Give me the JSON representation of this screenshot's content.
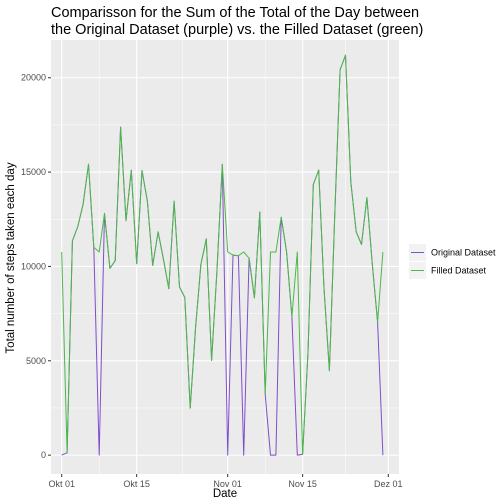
{
  "chart_data": {
    "type": "line",
    "title_lines": [
      "Comparisson for the Sum of the Total of the Day between",
      "the Original Dataset (purple) vs. the Filled Dataset (green)"
    ],
    "xlabel": "Date",
    "ylabel": "Total number of steps taken each day",
    "x_ticks": [
      {
        "date": "2012-10-01",
        "label": "Okt 01"
      },
      {
        "date": "2012-10-15",
        "label": "Okt 15"
      },
      {
        "date": "2012-11-01",
        "label": "Nov 01"
      },
      {
        "date": "2012-11-15",
        "label": "Nov 15"
      },
      {
        "date": "2012-12-01",
        "label": "Dez 01"
      }
    ],
    "y_ticks": [
      0,
      5000,
      10000,
      15000,
      20000
    ],
    "xlim": [
      "2012-09-29",
      "2012-12-03"
    ],
    "ylim": [
      -1000,
      22000
    ],
    "grid": true,
    "legend": {
      "position": "right",
      "entries": [
        {
          "name": "Original Dataset",
          "color": "#7f4fc9"
        },
        {
          "name": "Filled Dataset",
          "color": "#4cb848"
        }
      ]
    },
    "background_color": "#ebebeb",
    "gridline_color": "#ffffff",
    "x": [
      "2012-10-01",
      "2012-10-02",
      "2012-10-03",
      "2012-10-04",
      "2012-10-05",
      "2012-10-06",
      "2012-10-07",
      "2012-10-08",
      "2012-10-09",
      "2012-10-10",
      "2012-10-11",
      "2012-10-12",
      "2012-10-13",
      "2012-10-14",
      "2012-10-15",
      "2012-10-16",
      "2012-10-17",
      "2012-10-18",
      "2012-10-19",
      "2012-10-20",
      "2012-10-21",
      "2012-10-22",
      "2012-10-23",
      "2012-10-24",
      "2012-10-25",
      "2012-10-26",
      "2012-10-27",
      "2012-10-28",
      "2012-10-29",
      "2012-10-30",
      "2012-10-31",
      "2012-11-01",
      "2012-11-02",
      "2012-11-03",
      "2012-11-04",
      "2012-11-05",
      "2012-11-06",
      "2012-11-07",
      "2012-11-08",
      "2012-11-09",
      "2012-11-10",
      "2012-11-11",
      "2012-11-12",
      "2012-11-13",
      "2012-11-14",
      "2012-11-15",
      "2012-11-16",
      "2012-11-17",
      "2012-11-18",
      "2012-11-19",
      "2012-11-20",
      "2012-11-21",
      "2012-11-22",
      "2012-11-23",
      "2012-11-24",
      "2012-11-25",
      "2012-11-26",
      "2012-11-27",
      "2012-11-28",
      "2012-11-29",
      "2012-11-30"
    ],
    "series": [
      {
        "name": "Original Dataset",
        "color": "#7f4fc9",
        "values": [
          0,
          126,
          11352,
          12116,
          13294,
          15420,
          11015,
          0,
          12811,
          9900,
          10304,
          17382,
          12426,
          15098,
          10139,
          15084,
          13452,
          10056,
          11829,
          10395,
          8821,
          13460,
          8918,
          8355,
          2492,
          6778,
          10119,
          11458,
          5018,
          9819,
          15414,
          0,
          10600,
          10571,
          0,
          10439,
          8334,
          12883,
          3219,
          0,
          0,
          12608,
          10765,
          7336,
          0,
          41,
          5441,
          14339,
          15110,
          8841,
          4472,
          12787,
          20427,
          21194,
          14478,
          11834,
          11162,
          13646,
          10183,
          7047,
          0
        ]
      },
      {
        "name": "Filled Dataset",
        "color": "#4cb848",
        "values": [
          10766,
          126,
          11352,
          12116,
          13294,
          15420,
          11015,
          10766,
          12811,
          9900,
          10304,
          17382,
          12426,
          15098,
          10139,
          15084,
          13452,
          10056,
          11829,
          10395,
          8821,
          13460,
          8918,
          8355,
          2492,
          6778,
          10119,
          11458,
          5018,
          9819,
          15414,
          10766,
          10600,
          10571,
          10766,
          10439,
          8334,
          12883,
          3219,
          10766,
          10766,
          12608,
          10765,
          7336,
          10766,
          41,
          5441,
          14339,
          15110,
          8841,
          4472,
          12787,
          20427,
          21194,
          14478,
          11834,
          11162,
          13646,
          10183,
          7047,
          10766
        ]
      }
    ]
  }
}
